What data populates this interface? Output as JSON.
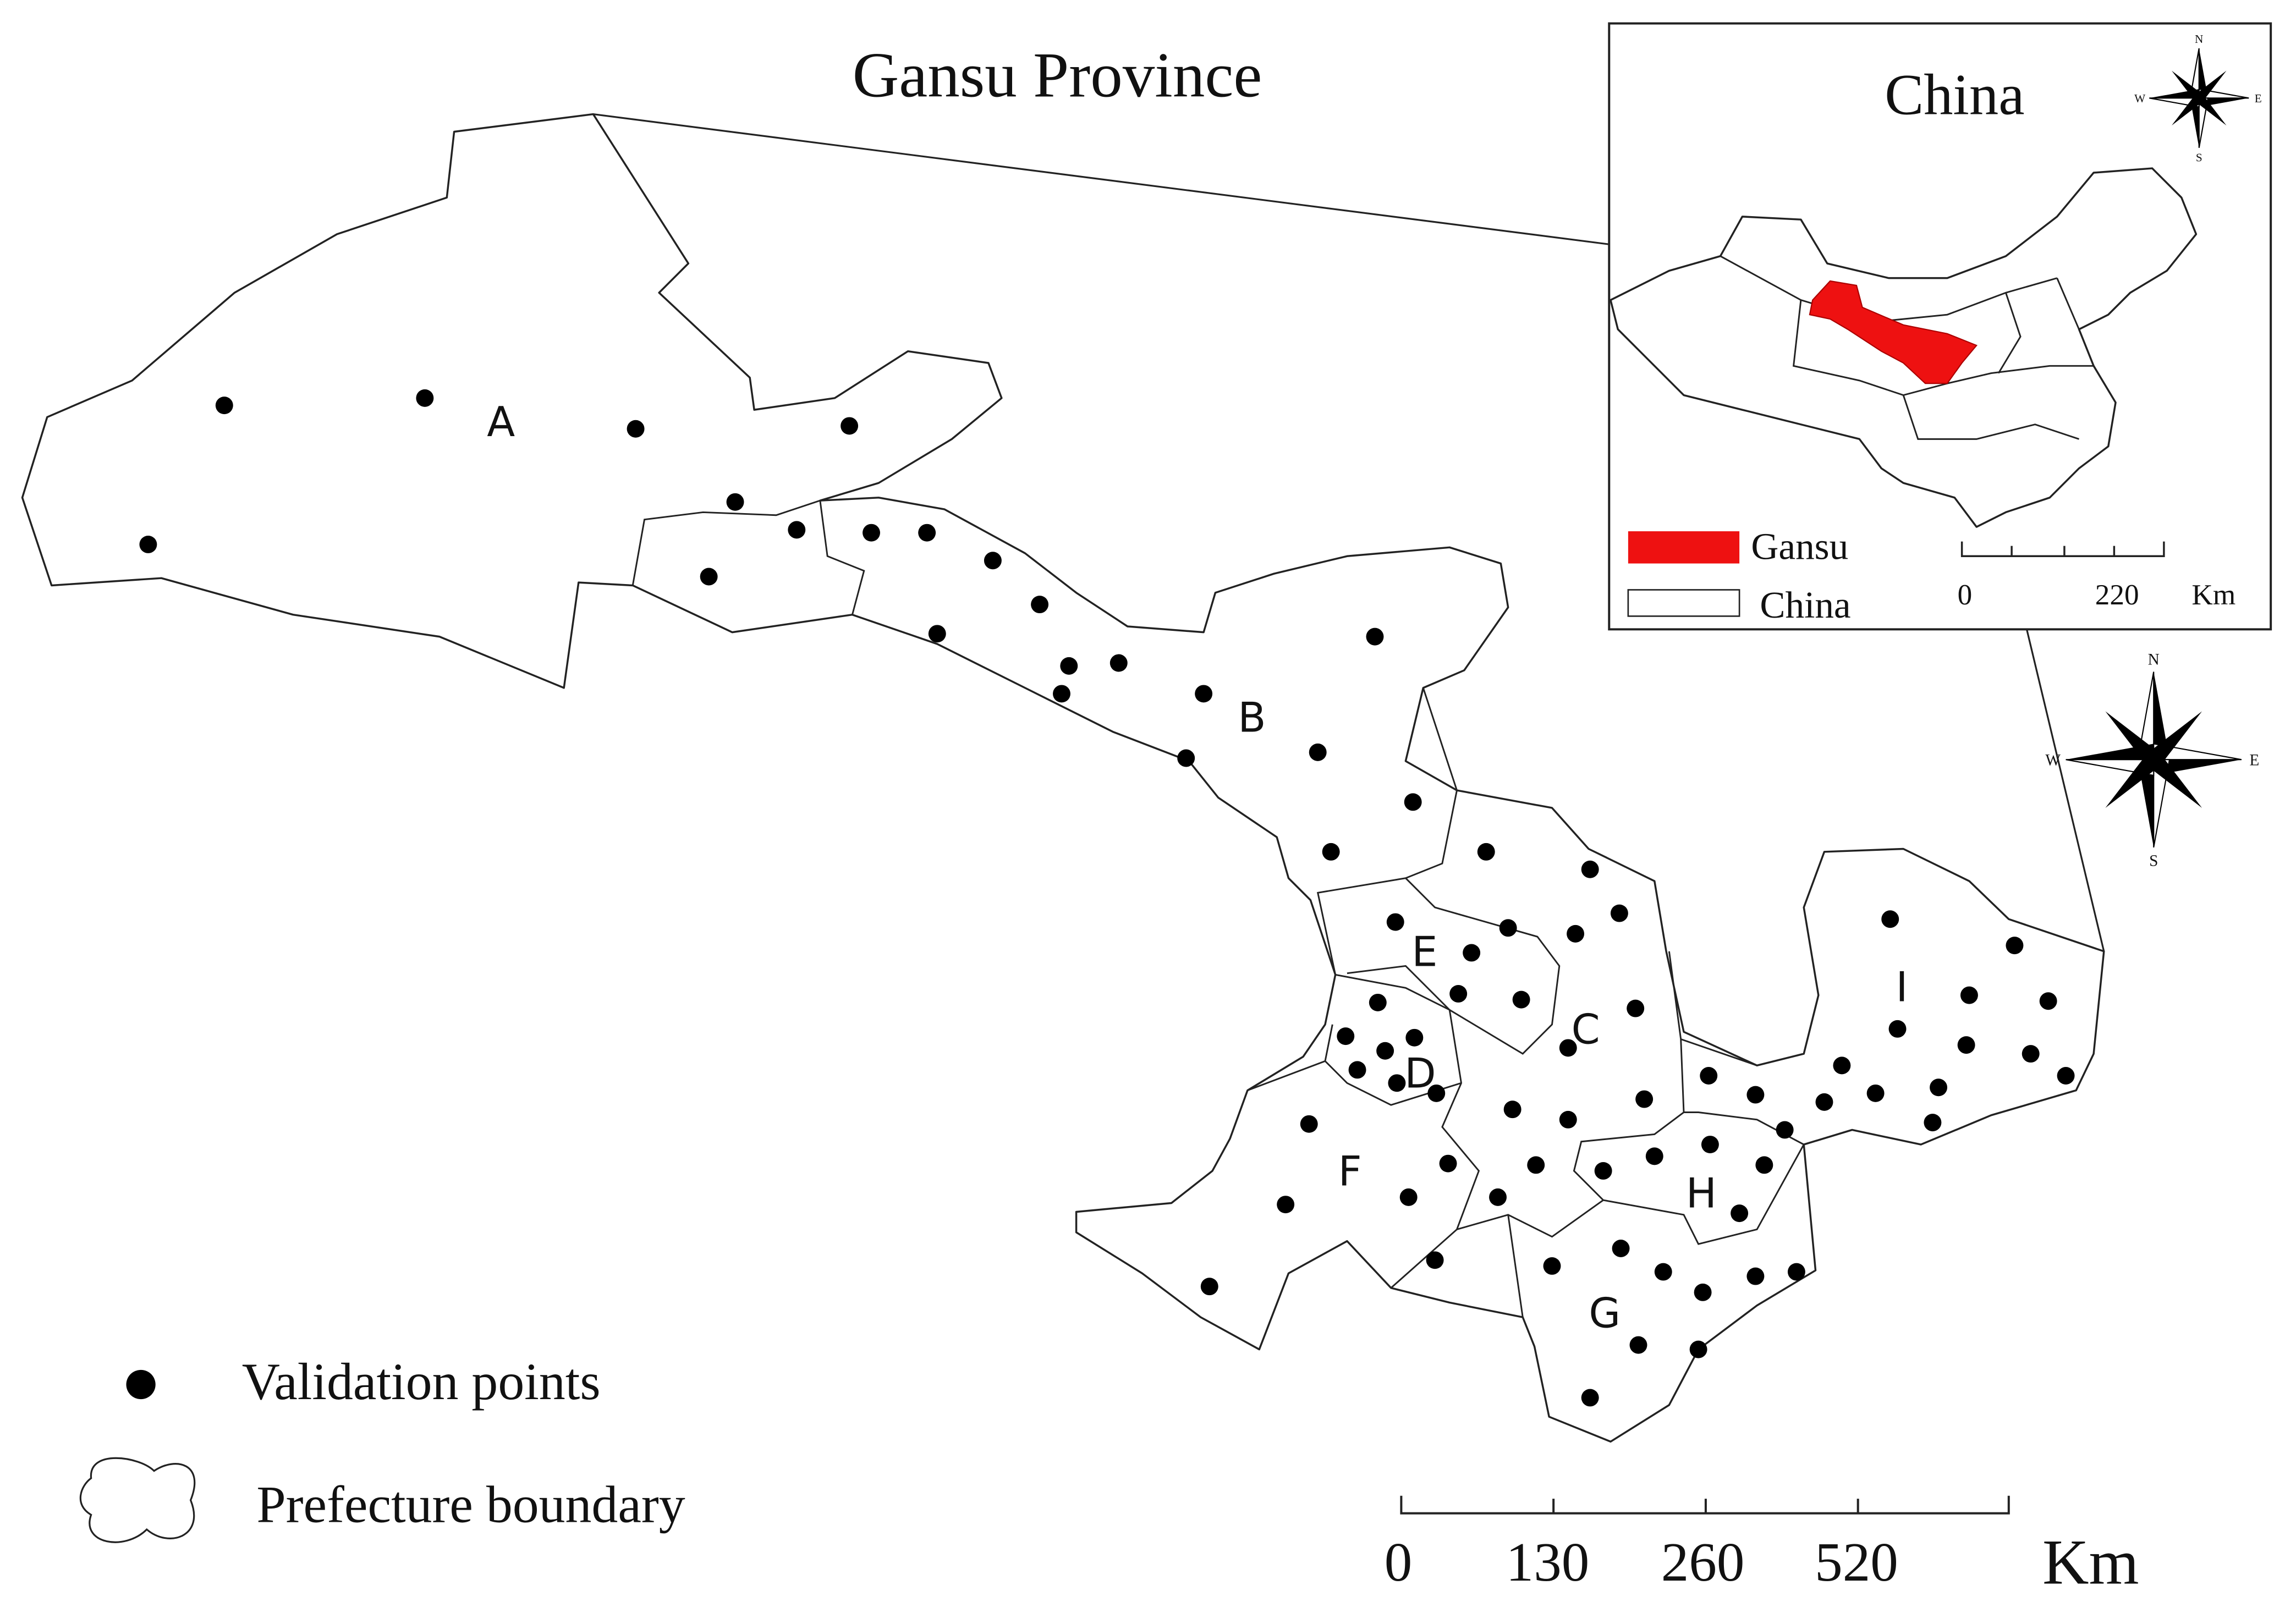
{
  "title": "Gansu Province",
  "regions": [
    "A",
    "B",
    "C",
    "D",
    "E",
    "F",
    "G",
    "H",
    "I"
  ],
  "legend": {
    "points": "Validation points",
    "boundary": "Prefecture boundary"
  },
  "scale": {
    "labels": [
      "0",
      "130",
      "260",
      "520"
    ],
    "unit": "Km"
  },
  "compass": {
    "n": "N",
    "e": "E",
    "s": "S",
    "w": "W"
  },
  "inset": {
    "title": "China",
    "legend": {
      "gansu": "Gansu",
      "china": "China"
    },
    "scale": {
      "labels": [
        "0",
        "220"
      ],
      "unit": "Km"
    },
    "compass": {
      "n": "N",
      "e": "E",
      "s": "S",
      "w": "W"
    }
  }
}
